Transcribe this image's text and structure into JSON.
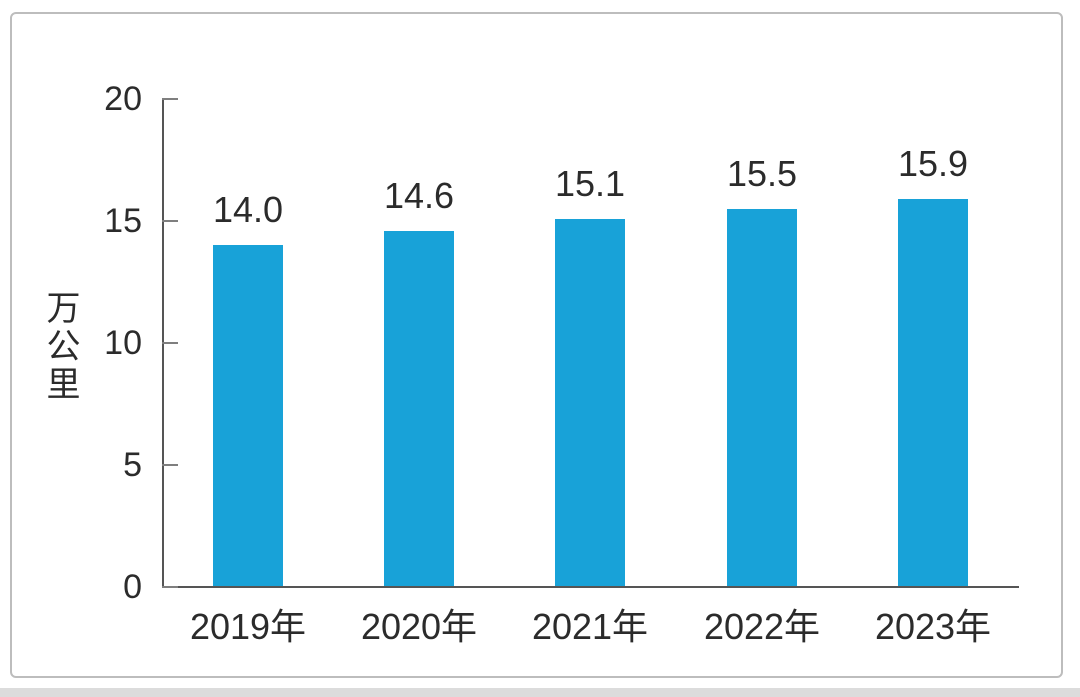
{
  "page": {
    "background_color": "#ffffff",
    "frame_border_color": "#bdbdbd",
    "bottom_strip_color": "#dcdcdc"
  },
  "chart_data": {
    "type": "bar",
    "title": "",
    "categories": [
      "2019年",
      "2020年",
      "2021年",
      "2022年",
      "2023年"
    ],
    "values": [
      14.0,
      14.6,
      15.1,
      15.5,
      15.9
    ],
    "value_labels": [
      "14.0",
      "14.6",
      "15.1",
      "15.5",
      "15.9"
    ],
    "xlabel": "",
    "ylabel": "万公里",
    "ylim": [
      0,
      20
    ],
    "yticks": [
      0,
      5,
      10,
      15,
      20
    ],
    "grid": false,
    "legend": "none",
    "bar_color": "#18a2d8",
    "axis_color": "#555555",
    "tick_color": "#7f7f7f",
    "label_color": "#2b2b2b"
  }
}
